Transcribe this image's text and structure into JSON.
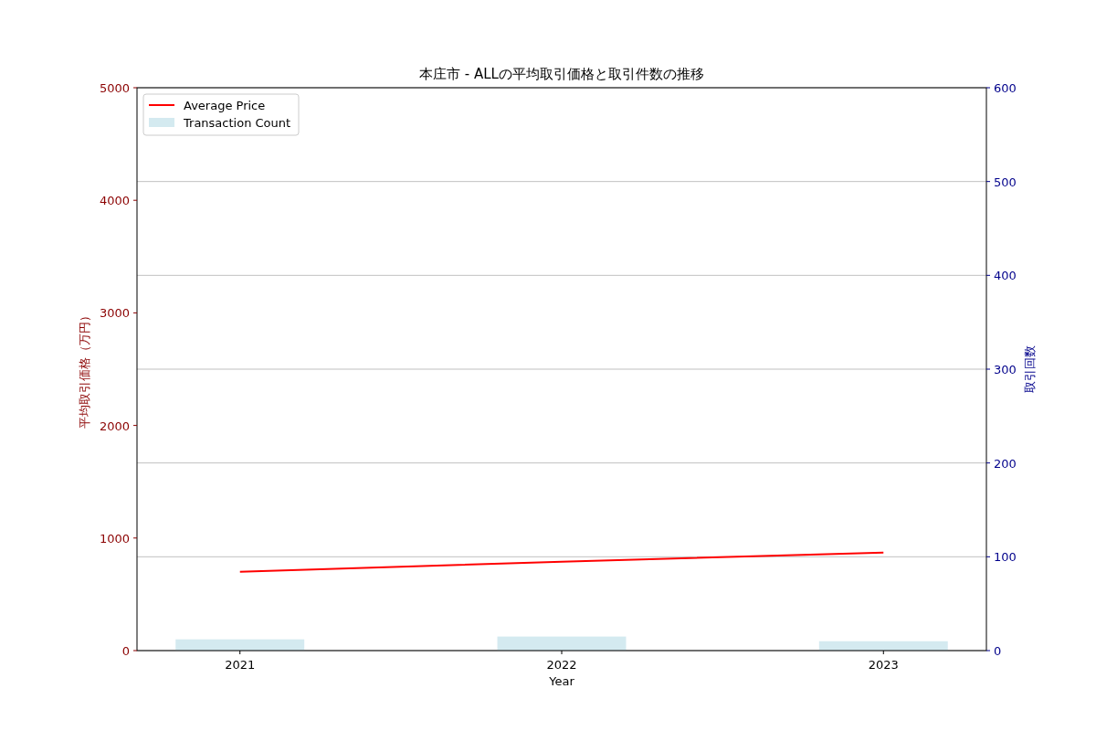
{
  "chart_data": {
    "type": "line",
    "title": "本庄市 - ALLの平均取引価格と取引件数の推移",
    "xlabel": "Year",
    "ylabel": "平均取引価格（万円）",
    "y2label": "取引回数",
    "x": [
      2021,
      2022,
      2023
    ],
    "xlim": [
      2020.68,
      2023.32
    ],
    "xticks": [
      2021,
      2022,
      2023
    ],
    "ylim": [
      0,
      5000
    ],
    "yticks": [
      0,
      1000,
      2000,
      3000,
      4000,
      5000
    ],
    "y2lim": [
      0,
      600
    ],
    "y2ticks": [
      0,
      100,
      200,
      300,
      400,
      500,
      600
    ],
    "grid": "y2",
    "legend": "top left",
    "series": [
      {
        "name": "Average Price",
        "color": "#ff0000",
        "values": [
          700,
          790,
          870
        ]
      },
      {
        "name": "Transaction Count",
        "type": "bar",
        "axis": "y2",
        "color": "#d4eaf0",
        "values": [
          12,
          15,
          10
        ]
      }
    ]
  }
}
